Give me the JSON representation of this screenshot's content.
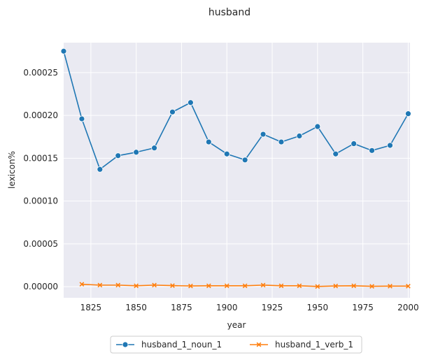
{
  "chart_data": {
    "type": "line",
    "title": "husband",
    "xlabel": "year",
    "ylabel": "lexicon%",
    "xlim": [
      1810,
      2001
    ],
    "ylim": [
      -1.3e-05,
      0.000285
    ],
    "xticks": [
      1825,
      1850,
      1875,
      1900,
      1925,
      1950,
      1975,
      2000
    ],
    "yticks": [
      0.0,
      5e-05,
      0.0001,
      0.00015,
      0.0002,
      0.00025
    ],
    "ytick_labels": [
      "0.00000",
      "0.00005",
      "0.00010",
      "0.00015",
      "0.00020",
      "0.00025"
    ],
    "grid": true,
    "legend_placement": "below",
    "series": [
      {
        "name": "husband_1_noun_1",
        "color": "#1f77b4",
        "marker": "circle",
        "x": [
          1810,
          1820,
          1830,
          1840,
          1850,
          1860,
          1870,
          1880,
          1890,
          1900,
          1910,
          1920,
          1930,
          1940,
          1950,
          1960,
          1970,
          1980,
          1990,
          2000
        ],
        "values": [
          0.000275,
          0.000196,
          0.000137,
          0.000153,
          0.000157,
          0.000162,
          0.000204,
          0.000215,
          0.000169,
          0.000155,
          0.000148,
          0.000178,
          0.000169,
          0.000176,
          0.000187,
          0.000155,
          0.000167,
          0.000159,
          0.000165,
          0.000202
        ]
      },
      {
        "name": "husband_1_verb_1",
        "color": "#ff7f0e",
        "marker": "x",
        "x": [
          1820,
          1830,
          1840,
          1850,
          1860,
          1870,
          1880,
          1890,
          1900,
          1910,
          1920,
          1930,
          1940,
          1950,
          1960,
          1970,
          1980,
          1990,
          2000
        ],
        "values": [
          2.8e-06,
          1.8e-06,
          1.8e-06,
          1e-06,
          1.8e-06,
          1.2e-06,
          8e-07,
          1e-06,
          1e-06,
          1e-06,
          1.8e-06,
          1e-06,
          1e-06,
          2e-07,
          8e-07,
          1e-06,
          4e-07,
          6e-07,
          6e-07
        ]
      }
    ]
  }
}
